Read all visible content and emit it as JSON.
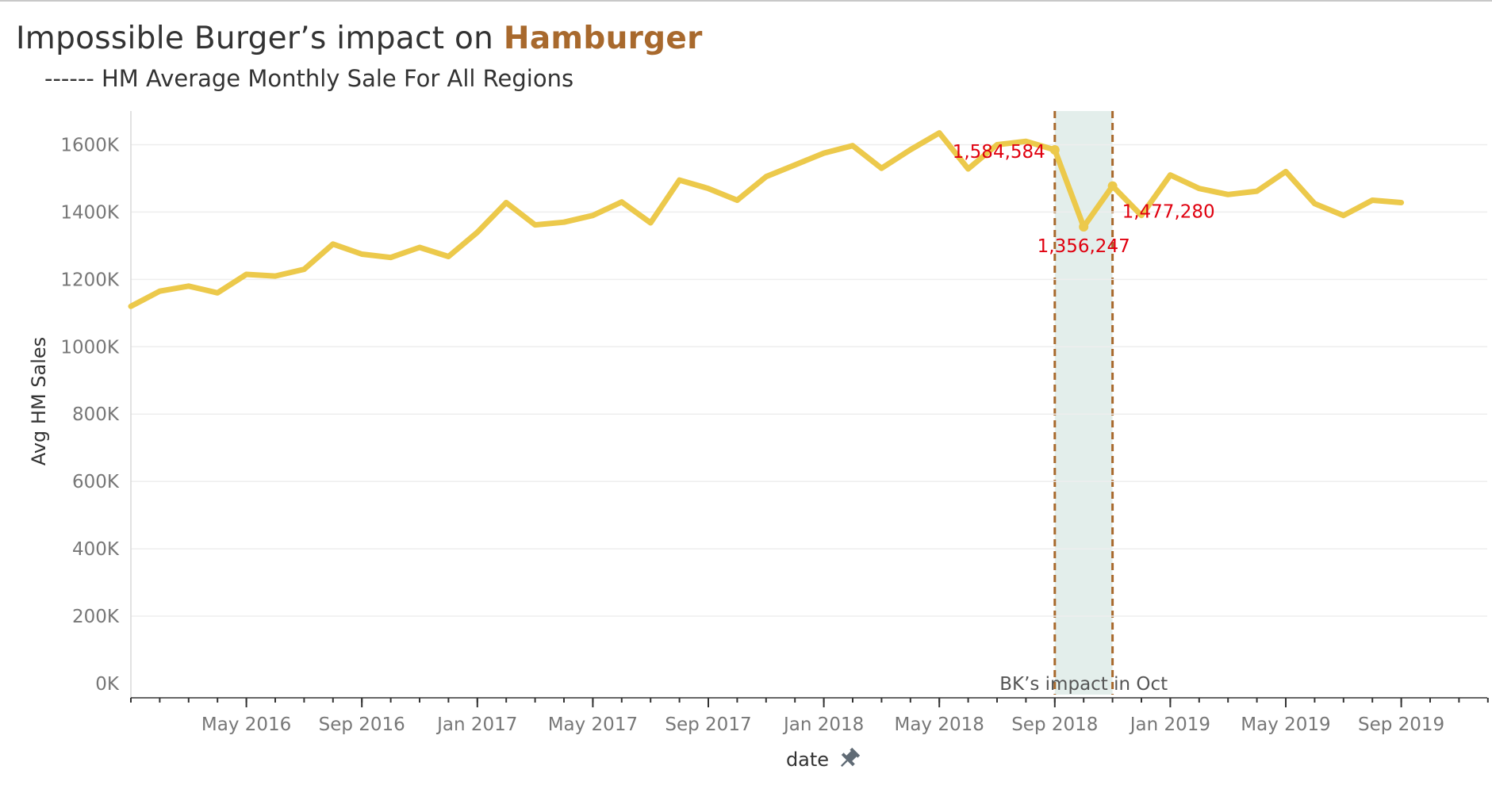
{
  "title": {
    "prefix": "Impossible Burger’s impact on ",
    "highlight": "Hamburger"
  },
  "subtitle": "------ HM Average Monthly Sale For All Regions",
  "colors": {
    "line": "#ecc94b",
    "band": "#e3eeeb",
    "band_edge": "#a8692d",
    "callout": "#e0000f",
    "highlight": "#a8692d"
  },
  "chart_data": {
    "type": "line",
    "xlabel": "date",
    "ylabel": "Avg HM Sales",
    "ylim": [
      0,
      1700000
    ],
    "grid": true,
    "yticks": [
      0,
      200000,
      400000,
      600000,
      800000,
      1000000,
      1200000,
      1400000,
      1600000
    ],
    "ytick_labels": [
      "0K",
      "200K",
      "400K",
      "600K",
      "800K",
      "1000K",
      "1200K",
      "1400K",
      "1600K"
    ],
    "xtick_labels": [
      "May 2016",
      "Sep 2016",
      "Jan 2017",
      "May 2017",
      "Sep 2017",
      "Jan 2018",
      "May 2018",
      "Sep 2018",
      "Jan 2019",
      "May 2019",
      "Sep 2019"
    ],
    "xtick_dates": [
      "2016-05",
      "2016-09",
      "2017-01",
      "2017-05",
      "2017-09",
      "2018-01",
      "2018-05",
      "2018-09",
      "2019-01",
      "2019-05",
      "2019-09"
    ],
    "x_range": [
      "2016-01",
      "2019-12"
    ],
    "series": [
      {
        "x": [
          "2016-01",
          "2016-02",
          "2016-03",
          "2016-04",
          "2016-05",
          "2016-06",
          "2016-07",
          "2016-08",
          "2016-09",
          "2016-10",
          "2016-11",
          "2016-12",
          "2017-01",
          "2017-02",
          "2017-03",
          "2017-04",
          "2017-05",
          "2017-06",
          "2017-07",
          "2017-08",
          "2017-09",
          "2017-10",
          "2017-11",
          "2017-12",
          "2018-01",
          "2018-02",
          "2018-03",
          "2018-04",
          "2018-05",
          "2018-06",
          "2018-07",
          "2018-08",
          "2018-09",
          "2018-10",
          "2018-11",
          "2018-12",
          "2019-01",
          "2019-02",
          "2019-03",
          "2019-04",
          "2019-05",
          "2019-06",
          "2019-07",
          "2019-08",
          "2019-09"
        ],
        "values": [
          1120000,
          1165000,
          1180000,
          1160000,
          1215000,
          1210000,
          1230000,
          1305000,
          1275000,
          1265000,
          1295000,
          1268000,
          1340000,
          1428000,
          1362000,
          1370000,
          1390000,
          1430000,
          1368000,
          1495000,
          1470000,
          1435000,
          1505000,
          1540000,
          1575000,
          1597000,
          1530000,
          1585000,
          1635000,
          1528000,
          1600000,
          1610000,
          1584584,
          1356247,
          1477280,
          1390000,
          1510000,
          1470000,
          1452000,
          1462000,
          1520000,
          1425000,
          1390000,
          1435000,
          1428000
        ]
      }
    ],
    "annotations": [
      {
        "x": "2018-09",
        "value": 1584584,
        "label": "1,584,584"
      },
      {
        "x": "2018-10",
        "value": 1356247,
        "label": "1,356,247"
      },
      {
        "x": "2018-11",
        "value": 1477280,
        "label": "1,477,280"
      }
    ],
    "reference_band": {
      "from": "2018-09",
      "to": "2018-11",
      "label": "BK’s impact in Oct"
    }
  }
}
